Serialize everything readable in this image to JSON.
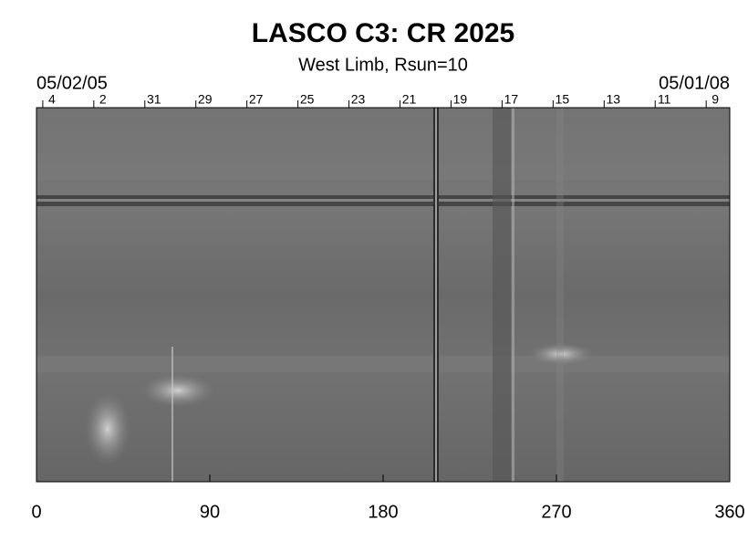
{
  "chart_data": {
    "type": "image",
    "title": "LASCO C3: CR 2025",
    "subtitle": "West Limb, Rsun=10",
    "start_date": "05/02/05",
    "end_date": "05/01/08",
    "xlim": [
      0,
      360
    ],
    "xticks": [
      0,
      90,
      180,
      270,
      360
    ],
    "top_ticks": [
      {
        "value": 8,
        "label": "4"
      },
      {
        "value": 34.5,
        "label": "2"
      },
      {
        "value": 61,
        "label": "31"
      },
      {
        "value": 87.5,
        "label": "29"
      },
      {
        "value": 114,
        "label": "27"
      },
      {
        "value": 140.5,
        "label": "25"
      },
      {
        "value": 167,
        "label": "23"
      },
      {
        "value": 193.5,
        "label": "21"
      },
      {
        "value": 220,
        "label": "19"
      },
      {
        "value": 246.5,
        "label": "17"
      },
      {
        "value": 273,
        "label": "15"
      },
      {
        "value": 299.5,
        "label": "13"
      },
      {
        "value": 326,
        "label": "11"
      },
      {
        "value": 352.5,
        "label": "9"
      }
    ]
  }
}
